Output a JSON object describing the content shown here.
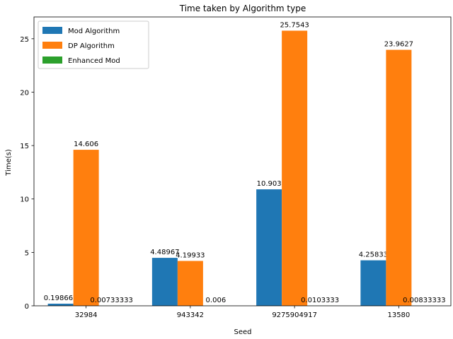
{
  "chart_data": {
    "type": "bar",
    "title": "Time taken by Algorithm type",
    "xlabel": "Seed",
    "ylabel": "Time(s)",
    "categories": [
      "32984",
      "943342",
      "9275904917",
      "13580"
    ],
    "ylim": [
      0,
      27.04
    ],
    "yticks": [
      0,
      5,
      10,
      15,
      20,
      25
    ],
    "grid": false,
    "legend_position": "top-left",
    "series": [
      {
        "name": "Mod Algorithm",
        "color": "#1f77b4",
        "values": [
          0.198667,
          4.48967,
          10.903,
          4.25833
        ],
        "labels": [
          "0.198667",
          "4.48967",
          "10.903",
          "4.25833"
        ]
      },
      {
        "name": "DP Algorithm",
        "color": "#ff7f0e",
        "values": [
          14.606,
          4.19933,
          25.7543,
          23.9627
        ],
        "labels": [
          "14.606",
          "4.19933",
          "25.7543",
          "23.9627"
        ]
      },
      {
        "name": "Enhanced Mod",
        "color": "#2ca02c",
        "values": [
          0.00733333,
          0.006,
          0.0103333,
          0.00833333
        ],
        "labels": [
          "0.00733333",
          "0.006",
          "0.0103333",
          "0.00833333"
        ]
      }
    ]
  }
}
